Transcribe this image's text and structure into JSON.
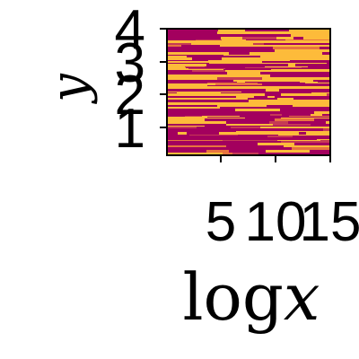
{
  "chart_data": {
    "type": "heatmap",
    "title": "",
    "xlabel_fn": "log",
    "xlabel_var": "x",
    "ylabel": "y",
    "x_ticks": [
      "5",
      "10",
      "15"
    ],
    "y_ticks": [
      "1",
      "2",
      "3",
      "4"
    ],
    "xlim": [
      1,
      15
    ],
    "ylim": [
      0.2,
      4.1
    ],
    "colormap": [
      "#a3005e",
      "#c63a55",
      "#e8743f",
      "#fdbb3a"
    ],
    "grid": false,
    "legend": "none"
  }
}
